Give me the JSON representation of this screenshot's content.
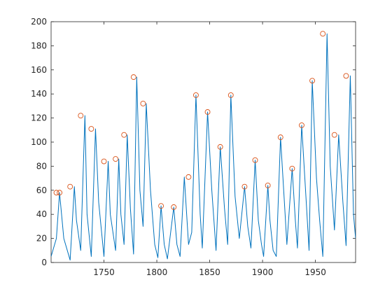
{
  "chart_data": {
    "type": "line",
    "title": "",
    "xlabel": "",
    "ylabel": "",
    "xlim": [
      1700,
      1988
    ],
    "ylim": [
      0,
      200
    ],
    "x_ticks": [
      1750,
      1800,
      1850,
      1900,
      1950
    ],
    "y_ticks": [
      0,
      20,
      40,
      60,
      80,
      100,
      120,
      140,
      160,
      180,
      200
    ],
    "grid": false,
    "legend": "none",
    "series": [
      {
        "style": "line",
        "color": "#0072BD",
        "x": [
          1700,
          1705,
          1708,
          1712,
          1718,
          1722,
          1724,
          1728,
          1732,
          1734,
          1738,
          1742,
          1745,
          1750,
          1754,
          1756,
          1761,
          1764,
          1766,
          1769,
          1772,
          1775,
          1778,
          1781,
          1784,
          1787,
          1790,
          1794,
          1798,
          1801,
          1804,
          1807,
          1810,
          1816,
          1819,
          1822,
          1826,
          1830,
          1833,
          1837,
          1841,
          1843,
          1848,
          1852,
          1856,
          1860,
          1864,
          1867,
          1870,
          1874,
          1878,
          1883,
          1886,
          1889,
          1893,
          1896,
          1899,
          1901,
          1905,
          1907,
          1910,
          1913,
          1917,
          1921,
          1923,
          1928,
          1931,
          1933,
          1937,
          1941,
          1944,
          1947,
          1951,
          1954,
          1957,
          1961,
          1964,
          1968,
          1972,
          1976,
          1979,
          1983,
          1986,
          1988
        ],
        "y": [
          5,
          20,
          58,
          20,
          2,
          63,
          35,
          10,
          122,
          40,
          5,
          111,
          50,
          5,
          84,
          40,
          10,
          86,
          40,
          15,
          106,
          45,
          7,
          154,
          60,
          30,
          132,
          60,
          15,
          4,
          47,
          15,
          3,
          46,
          15,
          5,
          71,
          15,
          25,
          139,
          40,
          12,
          125,
          60,
          10,
          96,
          45,
          15,
          139,
          55,
          20,
          63,
          30,
          12,
          85,
          35,
          15,
          5,
          64,
          35,
          10,
          5,
          104,
          45,
          15,
          78,
          35,
          12,
          114,
          55,
          10,
          151,
          70,
          35,
          5,
          190,
          80,
          27,
          106,
          50,
          14,
          155,
          40,
          20
        ]
      },
      {
        "style": "markers",
        "name": "",
        "color": "#D95319",
        "x": [
          1705,
          1708,
          1718,
          1728,
          1738,
          1750,
          1761,
          1769,
          1778,
          1787,
          1804,
          1816,
          1830,
          1837,
          1848,
          1860,
          1870,
          1883,
          1893,
          1905,
          1917,
          1928,
          1937,
          1947,
          1957,
          1968,
          1979
        ],
        "y": [
          58,
          58,
          63,
          122,
          111,
          84,
          86,
          106,
          154,
          132,
          47,
          46,
          71,
          139,
          125,
          96,
          139,
          63,
          85,
          64,
          104,
          78,
          114,
          151,
          190,
          106,
          155
        ]
      }
    ]
  }
}
